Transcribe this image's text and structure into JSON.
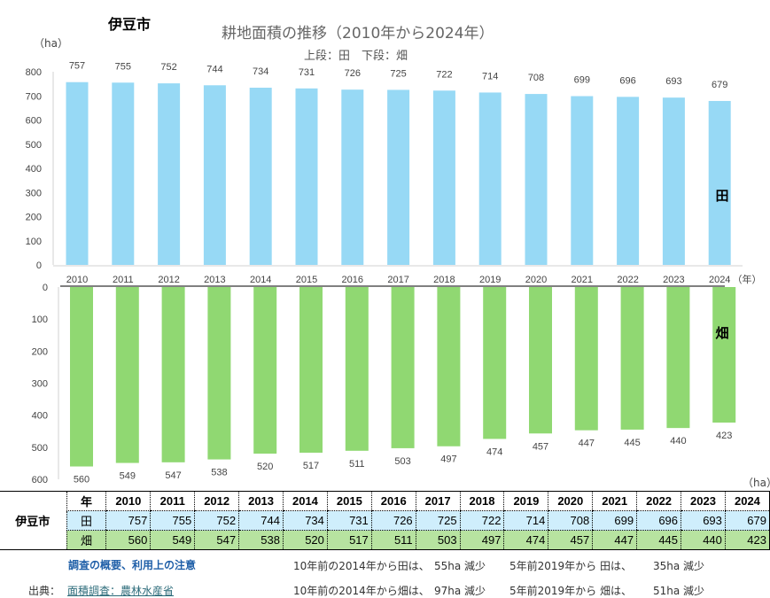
{
  "city": "伊豆市",
  "title": "耕地面積の推移（2010年から2024年）",
  "subtitle": "上段：田　下段：畑",
  "unit": "（ha）",
  "unit_bottom": "（ha）",
  "x_unit": "（年）",
  "chart_data": [
    {
      "type": "bar",
      "series": [
        {
          "name": "田",
          "values": [
            757,
            755,
            752,
            744,
            734,
            731,
            726,
            725,
            722,
            714,
            708,
            699,
            696,
            693,
            679
          ],
          "color": "#97d9f5"
        }
      ],
      "categories": [
        "2010",
        "2011",
        "2012",
        "2013",
        "2014",
        "2015",
        "2016",
        "2017",
        "2018",
        "2019",
        "2020",
        "2021",
        "2022",
        "2023",
        "2024"
      ],
      "ylim": [
        0,
        800
      ],
      "yticks": [
        0,
        100,
        200,
        300,
        400,
        500,
        600,
        700,
        800
      ]
    },
    {
      "type": "bar",
      "orientation": "downward",
      "series": [
        {
          "name": "畑",
          "values": [
            560,
            549,
            547,
            538,
            520,
            517,
            511,
            503,
            497,
            474,
            457,
            447,
            445,
            440,
            423
          ],
          "color": "#90d872"
        }
      ],
      "categories": [
        "2010",
        "2011",
        "2012",
        "2013",
        "2014",
        "2015",
        "2016",
        "2017",
        "2018",
        "2019",
        "2020",
        "2021",
        "2022",
        "2023",
        "2024"
      ],
      "ylim": [
        0,
        600
      ],
      "yticks": [
        0,
        100,
        200,
        300,
        400,
        500,
        600
      ]
    }
  ],
  "table": {
    "city": "伊豆市",
    "header_label": "年",
    "years": [
      "2010",
      "2011",
      "2012",
      "2013",
      "2014",
      "2015",
      "2016",
      "2017",
      "2018",
      "2019",
      "2020",
      "2021",
      "2022",
      "2023",
      "2024"
    ],
    "rows": [
      {
        "label": "田",
        "values": [
          "757",
          "755",
          "752",
          "744",
          "734",
          "731",
          "726",
          "725",
          "722",
          "714",
          "708",
          "699",
          "696",
          "693",
          "679"
        ]
      },
      {
        "label": "畑",
        "values": [
          "560",
          "549",
          "547",
          "538",
          "520",
          "517",
          "511",
          "503",
          "497",
          "474",
          "457",
          "447",
          "445",
          "440",
          "423"
        ]
      }
    ]
  },
  "notes": {
    "survey_link": "調査の概要、利用上の注意",
    "source_label": "出典：",
    "source_link": "面積調査：農林水産省",
    "rice_10y": "10年前の2014年から田は、",
    "rice_10y_val": "55ha 減少",
    "rice_5y": "5年前2019年から 田は、",
    "rice_5y_val": "35ha 減少",
    "field_10y": "10年前の2014年から畑は、",
    "field_10y_val": "97ha 減少",
    "field_5y": "5年前2019年から 畑は、",
    "field_5y_val": "51ha 減少"
  }
}
